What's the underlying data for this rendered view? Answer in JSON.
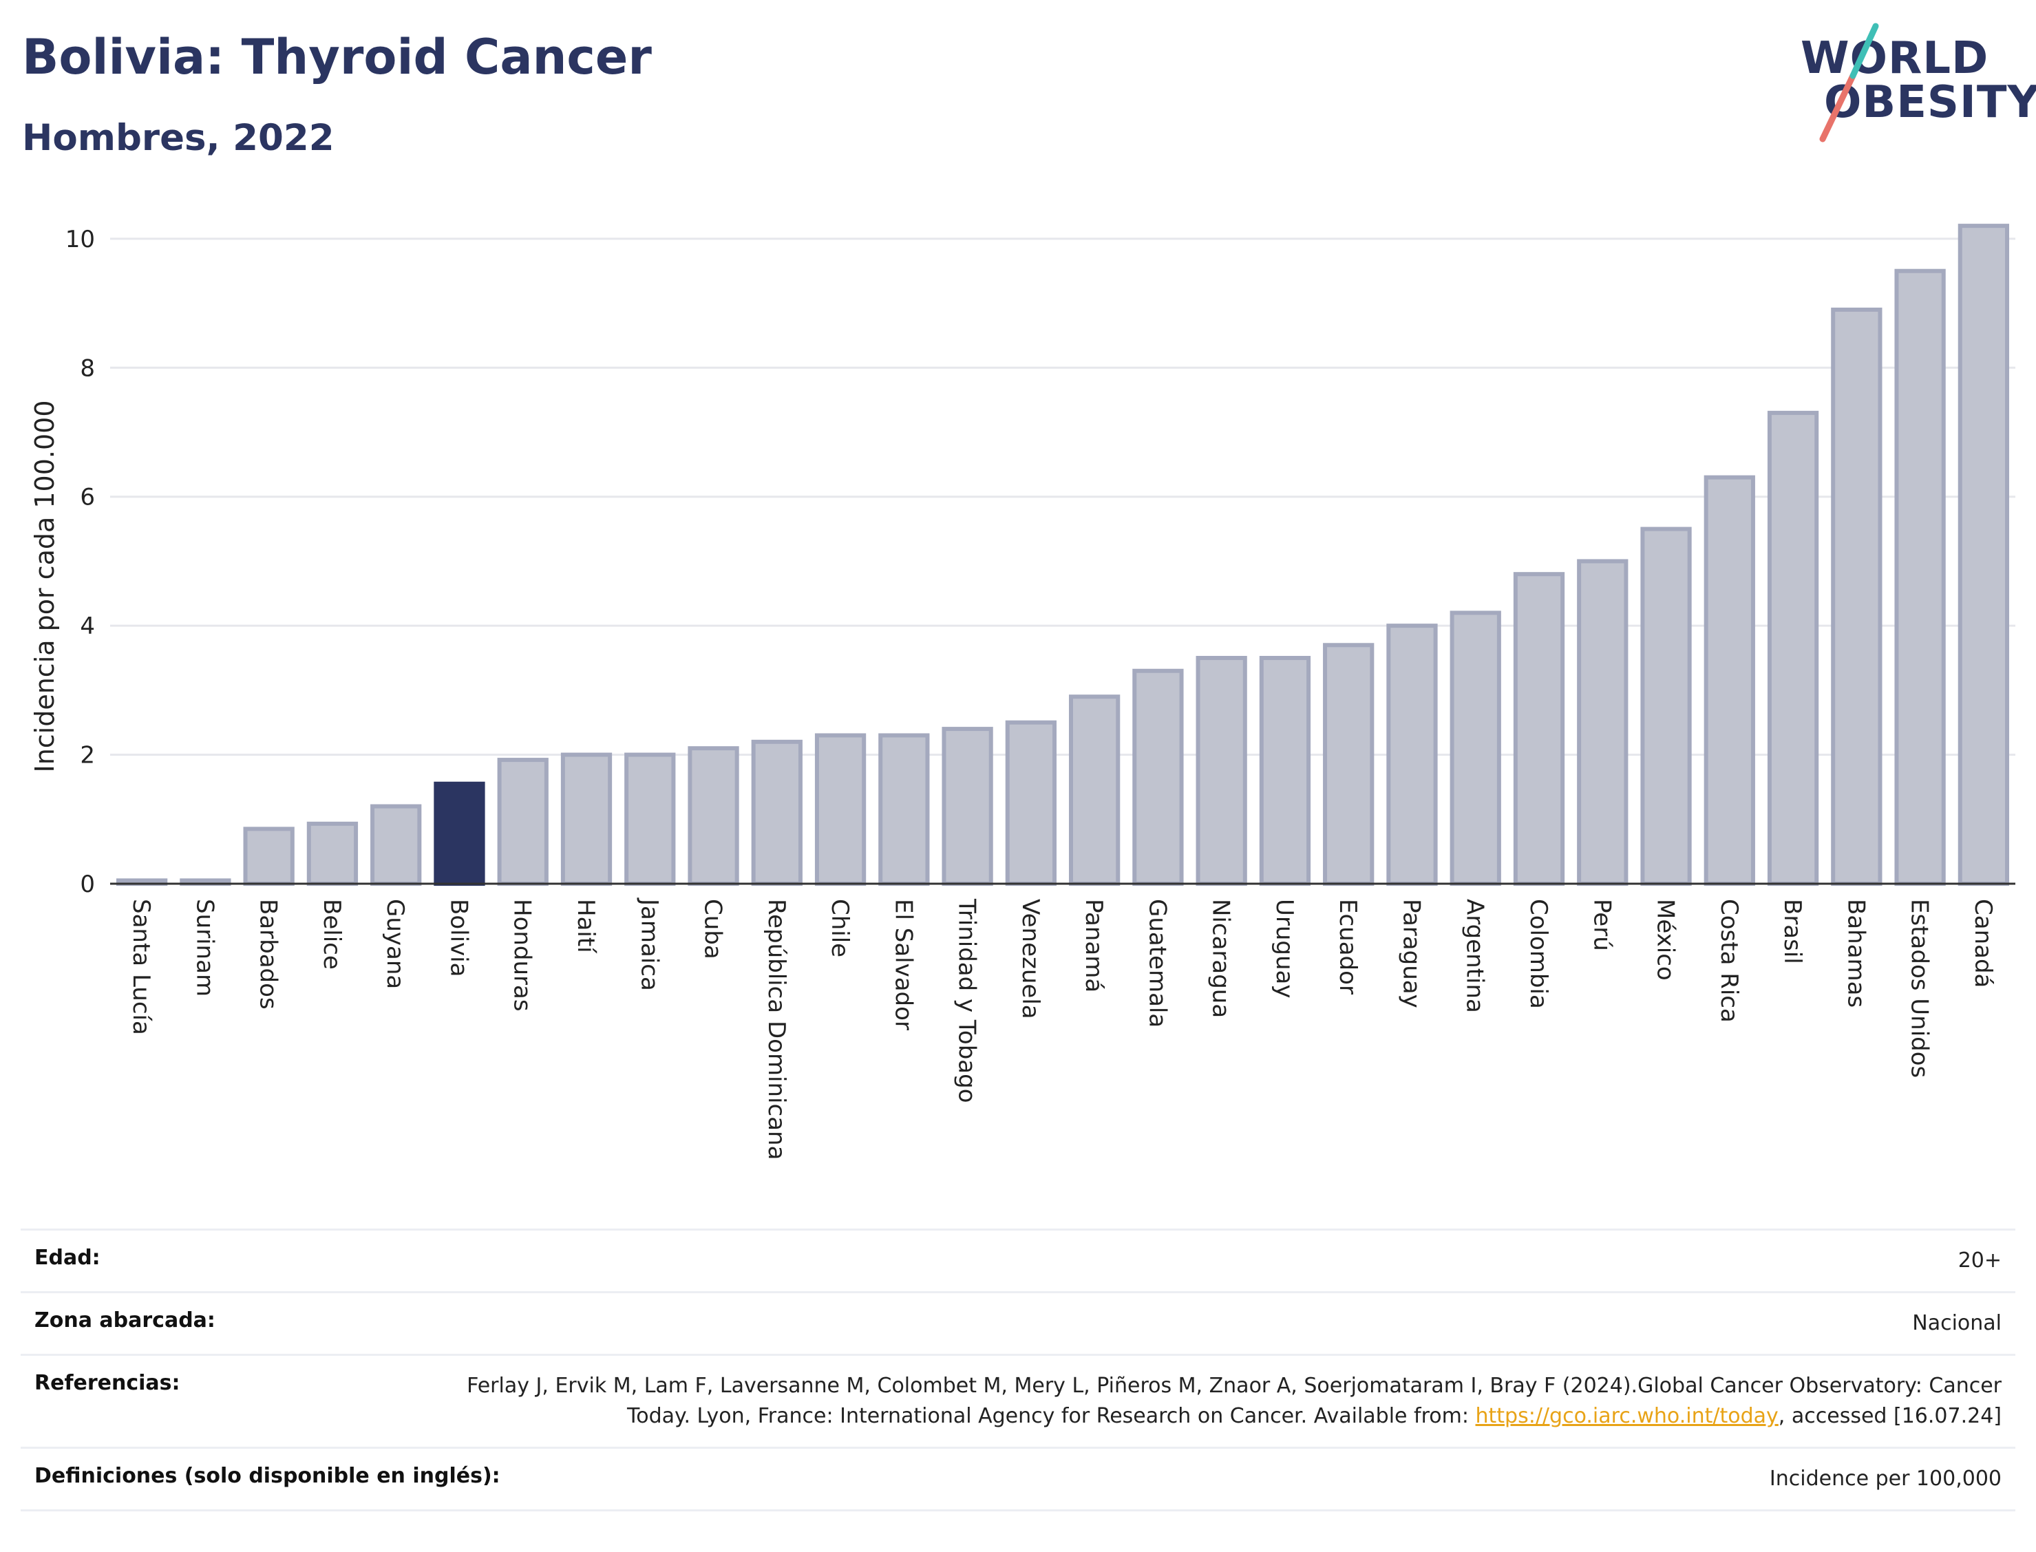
{
  "header": {
    "title": "Bolivia: Thyroid Cancer",
    "subtitle": "Hombres, 2022"
  },
  "logo": {
    "line1": "WORLD",
    "line2": "OBESITY"
  },
  "colors": {
    "highlight": "#2b3561",
    "bar": "#c0c3cf",
    "bar_border": "#a4a9be",
    "grid": "#e6e7ec"
  },
  "chart_data": {
    "type": "bar",
    "title": "Bolivia: Thyroid Cancer",
    "subtitle": "Hombres, 2022",
    "ylabel": "Incidencia por cada 100.000",
    "xlabel": "",
    "ylim": [
      0,
      10.5
    ],
    "yticks": [
      0,
      2,
      4,
      6,
      8,
      10
    ],
    "grid": true,
    "highlight": "Bolivia",
    "categories": [
      "Santa Lucía",
      "Surinam",
      "Barbados",
      "Belice",
      "Guyana",
      "Bolivia",
      "Honduras",
      "Haití",
      "Jamaica",
      "Cuba",
      "República Dominicana",
      "Chile",
      "El Salvador",
      "Trinidad y Tobago",
      "Venezuela",
      "Panamá",
      "Guatemala",
      "Nicaragua",
      "Uruguay",
      "Ecuador",
      "Paraguay",
      "Argentina",
      "Colombia",
      "Perú",
      "México",
      "Costa Rica",
      "Brasil",
      "Bahamas",
      "Estados Unidos",
      "Canadá"
    ],
    "values": [
      0.05,
      0.05,
      0.85,
      0.93,
      1.2,
      1.55,
      1.92,
      2.0,
      2.0,
      2.1,
      2.2,
      2.3,
      2.3,
      2.4,
      2.5,
      2.9,
      3.3,
      3.5,
      3.5,
      3.7,
      4.0,
      4.2,
      4.8,
      5.0,
      5.5,
      6.3,
      7.3,
      8.9,
      9.5,
      10.2
    ]
  },
  "meta": {
    "edad_label": "Edad:",
    "edad_value": "20+",
    "zona_label": "Zona abarcada:",
    "zona_value": "Nacional",
    "ref_label": "Referencias:",
    "ref_text_1": "Ferlay J, Ervik M, Lam F, Laversanne M, Colombet M, Mery L, Piñeros M, Znaor A, Soerjomataram I, Bray F (2024).Global Cancer Observatory: Cancer Today. Lyon, France: International Agency for Research on Cancer. Available from: ",
    "ref_link": "https://gco.iarc.who.int/today",
    "ref_text_2": ", accessed [16.07.24]",
    "def_label": "Definiciones (solo disponible en inglés):",
    "def_value": "Incidence per 100,000"
  }
}
